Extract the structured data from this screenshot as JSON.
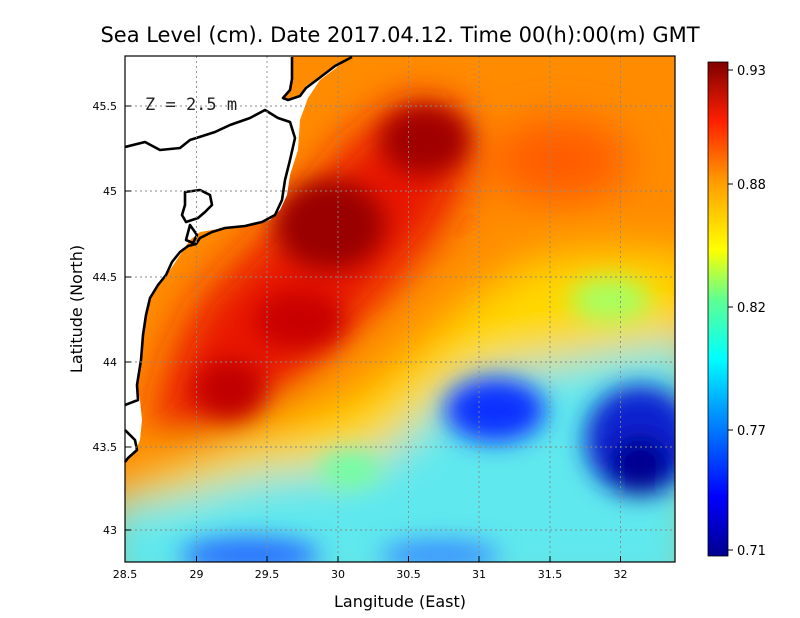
{
  "map": {
    "title": "Sea Level (cm). Date 2017.04.12. Time 00(h):00(m) GMT",
    "depth_label": "Z = 2.5 m",
    "xlabel": "Langitude (East)",
    "ylabel": "Latitude (North)",
    "lon_range": [
      28.5,
      32.4
    ],
    "lat_range": [
      42.8,
      45.8
    ],
    "x_ticks": [
      "28.5",
      "29",
      "29.5",
      "30",
      "30.5",
      "31",
      "31.5",
      "32"
    ],
    "y_ticks": [
      "43",
      "43.5",
      "44",
      "44.5",
      "45",
      "45.5"
    ],
    "colorbar_ticks": [
      "0.93",
      "0.88",
      "0.82",
      "0.77",
      "0.71"
    ],
    "colorbar_range": [
      0.71,
      0.93
    ],
    "colormap": "jet",
    "grid": "dotted",
    "coast_color": "#000000",
    "land_color": "#ffffff"
  }
}
